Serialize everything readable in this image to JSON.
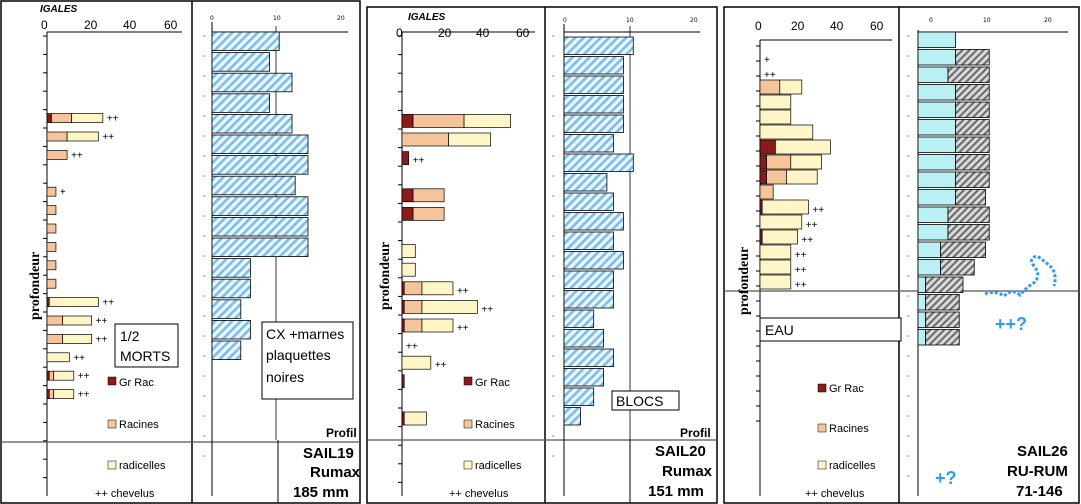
{
  "colors": {
    "gr_rac": "#8B1A1A",
    "racines": "#F6C49A",
    "radicelles": "#FFF6C8",
    "hatch_blue": "#7CBEEA",
    "cyan": "#B8F0F4",
    "dark_hatch": "#7E7E7E",
    "accent_blue": "#2E9CF0"
  },
  "legend": {
    "gr_rac": "Gr Rac",
    "racines": "Racines",
    "radicelles": "radicelles",
    "chevelus": "++ chevelus"
  },
  "axis": {
    "root_ticks": [
      "0",
      "20",
      "40",
      "60"
    ],
    "stone_ticks": [
      "0",
      "10",
      "20"
    ],
    "ylabel": "profondeur",
    "profil_label": "Profil"
  },
  "panels": [
    {
      "logo": "IGALES",
      "profile_title": [
        "SAIL19",
        "Rumax",
        "185 mm"
      ],
      "note_root": [
        "1/2",
        "MORTS"
      ],
      "note_stone": [
        "CX +marnes",
        "plaquettes",
        "noires"
      ]
    },
    {
      "logo": "IGALES",
      "profile_title": [
        "SAIL20",
        "Rumax",
        "151 mm"
      ],
      "note_root": [],
      "note_stone": [
        "BLOCS"
      ]
    },
    {
      "logo": "",
      "profile_title": [
        "SAIL26",
        "RU-RUM",
        "71-146"
      ],
      "note_root": [
        "EAU"
      ],
      "note_stone": [
        "++?",
        "+?"
      ]
    }
  ],
  "chart_data": [
    {
      "type": "bar",
      "title": "SAIL19 Rumax 185 mm",
      "ylabel": "profondeur",
      "xlim_roots": [
        0,
        60
      ],
      "xlim_stones": [
        0,
        20
      ],
      "roots": [
        {
          "row": 4,
          "gr_rac": 2,
          "racines": 9,
          "radicelles": 14,
          "chevelus": "++"
        },
        {
          "row": 5,
          "gr_rac": 0,
          "racines": 9,
          "radicelles": 14,
          "chevelus": "++"
        },
        {
          "row": 6,
          "gr_rac": 0,
          "racines": 9,
          "radicelles": 0,
          "chevelus": "++"
        },
        {
          "row": 8,
          "gr_rac": 0,
          "racines": 4,
          "radicelles": 0,
          "chevelus": "+"
        },
        {
          "row": 9,
          "gr_rac": 0,
          "racines": 4,
          "radicelles": 0,
          "chevelus": ""
        },
        {
          "row": 10,
          "gr_rac": 0,
          "racines": 4,
          "radicelles": 0,
          "chevelus": ""
        },
        {
          "row": 11,
          "gr_rac": 0,
          "racines": 4,
          "radicelles": 0,
          "chevelus": ""
        },
        {
          "row": 12,
          "gr_rac": 0,
          "racines": 4,
          "radicelles": 0,
          "chevelus": ""
        },
        {
          "row": 13,
          "gr_rac": 0,
          "racines": 4,
          "radicelles": 0,
          "chevelus": ""
        },
        {
          "row": 14,
          "gr_rac": 1,
          "racines": 0,
          "radicelles": 22,
          "chevelus": "++"
        },
        {
          "row": 15,
          "gr_rac": 0,
          "racines": 7,
          "radicelles": 13,
          "chevelus": "++"
        },
        {
          "row": 16,
          "gr_rac": 0,
          "racines": 7,
          "radicelles": 13,
          "chevelus": "++"
        },
        {
          "row": 17,
          "gr_rac": 0,
          "racines": 0,
          "radicelles": 10,
          "chevelus": "++"
        },
        {
          "row": 18,
          "gr_rac": 1,
          "racines": 2,
          "radicelles": 9,
          "chevelus": "++"
        },
        {
          "row": 19,
          "gr_rac": 1,
          "racines": 2,
          "radicelles": 9,
          "chevelus": "++"
        }
      ],
      "stones": [
        {
          "row": 0,
          "value": 10.5
        },
        {
          "row": 1,
          "value": 9
        },
        {
          "row": 2,
          "value": 12.5
        },
        {
          "row": 3,
          "value": 9
        },
        {
          "row": 4,
          "value": 12.5
        },
        {
          "row": 5,
          "value": 15
        },
        {
          "row": 6,
          "value": 15
        },
        {
          "row": 7,
          "value": 13
        },
        {
          "row": 8,
          "value": 15
        },
        {
          "row": 9,
          "value": 15
        },
        {
          "row": 10,
          "value": 15
        },
        {
          "row": 11,
          "value": 6
        },
        {
          "row": 12,
          "value": 6
        },
        {
          "row": 13,
          "value": 4.5
        },
        {
          "row": 14,
          "value": 6
        },
        {
          "row": 15,
          "value": 4.5
        }
      ]
    },
    {
      "type": "bar",
      "title": "SAIL20 Rumax 151 mm",
      "ylabel": "profondeur",
      "xlim_roots": [
        0,
        60
      ],
      "xlim_stones": [
        0,
        20
      ],
      "roots": [
        {
          "row": 4,
          "gr_rac": 5,
          "racines": 23,
          "radicelles": 21,
          "chevelus": ""
        },
        {
          "row": 5,
          "gr_rac": 0,
          "racines": 21,
          "radicelles": 19,
          "chevelus": ""
        },
        {
          "row": 6,
          "gr_rac": 3,
          "racines": 0,
          "radicelles": 0,
          "chevelus": "++"
        },
        {
          "row": 8,
          "gr_rac": 5,
          "racines": 14,
          "radicelles": 0,
          "chevelus": ""
        },
        {
          "row": 9,
          "gr_rac": 5,
          "racines": 14,
          "radicelles": 0,
          "chevelus": ""
        },
        {
          "row": 11,
          "gr_rac": 0,
          "racines": 0,
          "radicelles": 6,
          "chevelus": ""
        },
        {
          "row": 12,
          "gr_rac": 0,
          "racines": 0,
          "radicelles": 6,
          "chevelus": ""
        },
        {
          "row": 13,
          "gr_rac": 1,
          "racines": 8,
          "radicelles": 14,
          "chevelus": "++"
        },
        {
          "row": 14,
          "gr_rac": 1,
          "racines": 8,
          "radicelles": 25,
          "chevelus": "++"
        },
        {
          "row": 15,
          "gr_rac": 1,
          "racines": 8,
          "radicelles": 14,
          "chevelus": "++"
        },
        {
          "row": 16,
          "gr_rac": 0,
          "racines": 0,
          "radicelles": 0,
          "chevelus": "++"
        },
        {
          "row": 17,
          "gr_rac": 0,
          "racines": 0,
          "radicelles": 13,
          "chevelus": "++"
        },
        {
          "row": 18,
          "gr_rac": 1,
          "racines": 0,
          "radicelles": 0,
          "chevelus": ""
        },
        {
          "row": 20,
          "gr_rac": 1,
          "racines": 0,
          "radicelles": 10,
          "chevelus": ""
        }
      ],
      "stones": [
        {
          "row": 0,
          "value": 10.5
        },
        {
          "row": 1,
          "value": 9
        },
        {
          "row": 2,
          "value": 9
        },
        {
          "row": 3,
          "value": 9
        },
        {
          "row": 4,
          "value": 9
        },
        {
          "row": 5,
          "value": 7.5
        },
        {
          "row": 6,
          "value": 10.5
        },
        {
          "row": 7,
          "value": 6.5
        },
        {
          "row": 8,
          "value": 7.5
        },
        {
          "row": 9,
          "value": 9
        },
        {
          "row": 10,
          "value": 7.5
        },
        {
          "row": 11,
          "value": 9
        },
        {
          "row": 12,
          "value": 7.5
        },
        {
          "row": 13,
          "value": 7.5
        },
        {
          "row": 14,
          "value": 4.5
        },
        {
          "row": 15,
          "value": 6
        },
        {
          "row": 16,
          "value": 7.5
        },
        {
          "row": 17,
          "value": 6
        },
        {
          "row": 18,
          "value": 4.5
        },
        {
          "row": 19,
          "value": 2.5
        }
      ]
    },
    {
      "type": "bar",
      "title": "SAIL26 RU-RUM 71-146",
      "ylabel": "profondeur",
      "xlim_roots": [
        0,
        60
      ],
      "xlim_stones": [
        0,
        20
      ],
      "roots": [
        {
          "row": 0,
          "gr_rac": 0,
          "racines": 0,
          "radicelles": 0,
          "chevelus": "+"
        },
        {
          "row": 1,
          "gr_rac": 0,
          "racines": 0,
          "radicelles": 0,
          "chevelus": "++"
        },
        {
          "row": 2,
          "gr_rac": 0,
          "racines": 9,
          "radicelles": 10,
          "chevelus": ""
        },
        {
          "row": 3,
          "gr_rac": 0,
          "racines": 0,
          "radicelles": 14,
          "chevelus": ""
        },
        {
          "row": 4,
          "gr_rac": 0,
          "racines": 0,
          "radicelles": 14,
          "chevelus": ""
        },
        {
          "row": 5,
          "gr_rac": 0,
          "racines": 0,
          "radicelles": 24,
          "chevelus": ""
        },
        {
          "row": 6,
          "gr_rac": 7,
          "racines": 0,
          "radicelles": 25,
          "chevelus": ""
        },
        {
          "row": 7,
          "gr_rac": 3,
          "racines": 11,
          "radicelles": 14,
          "chevelus": ""
        },
        {
          "row": 8,
          "gr_rac": 3,
          "racines": 9,
          "radicelles": 14,
          "chevelus": ""
        },
        {
          "row": 9,
          "gr_rac": 0,
          "racines": 6,
          "radicelles": 0,
          "chevelus": ""
        },
        {
          "row": 10,
          "gr_rac": 1,
          "racines": 0,
          "radicelles": 21,
          "chevelus": "++"
        },
        {
          "row": 11,
          "gr_rac": 0,
          "racines": 0,
          "radicelles": 19,
          "chevelus": "++"
        },
        {
          "row": 12,
          "gr_rac": 1,
          "racines": 0,
          "radicelles": 16,
          "chevelus": "++"
        },
        {
          "row": 13,
          "gr_rac": 0,
          "racines": 0,
          "radicelles": 14,
          "chevelus": "++"
        },
        {
          "row": 14,
          "gr_rac": 0,
          "racines": 0,
          "radicelles": 14,
          "chevelus": "++"
        },
        {
          "row": 15,
          "gr_rac": 0,
          "racines": 0,
          "radicelles": 14,
          "chevelus": "++"
        }
      ],
      "stones": [
        {
          "row": 0,
          "cyan": 5,
          "dark": 0
        },
        {
          "row": 1,
          "cyan": 5,
          "dark": 4.5
        },
        {
          "row": 2,
          "cyan": 4,
          "dark": 5.5
        },
        {
          "row": 3,
          "cyan": 5,
          "dark": 4.5
        },
        {
          "row": 4,
          "cyan": 5,
          "dark": 4.5
        },
        {
          "row": 5,
          "cyan": 5,
          "dark": 4.5
        },
        {
          "row": 6,
          "cyan": 5,
          "dark": 4.5
        },
        {
          "row": 7,
          "cyan": 5,
          "dark": 4.5
        },
        {
          "row": 8,
          "cyan": 5,
          "dark": 4.5
        },
        {
          "row": 9,
          "cyan": 5,
          "dark": 4
        },
        {
          "row": 10,
          "cyan": 4,
          "dark": 5.5
        },
        {
          "row": 11,
          "cyan": 4,
          "dark": 5.5
        },
        {
          "row": 12,
          "cyan": 3,
          "dark": 6
        },
        {
          "row": 13,
          "cyan": 3,
          "dark": 4.5
        },
        {
          "row": 14,
          "cyan": 1,
          "dark": 5
        },
        {
          "row": 15,
          "cyan": 1,
          "dark": 4.5
        },
        {
          "row": 16,
          "cyan": 1,
          "dark": 4.5
        },
        {
          "row": 17,
          "cyan": 1,
          "dark": 4.5
        }
      ]
    }
  ]
}
